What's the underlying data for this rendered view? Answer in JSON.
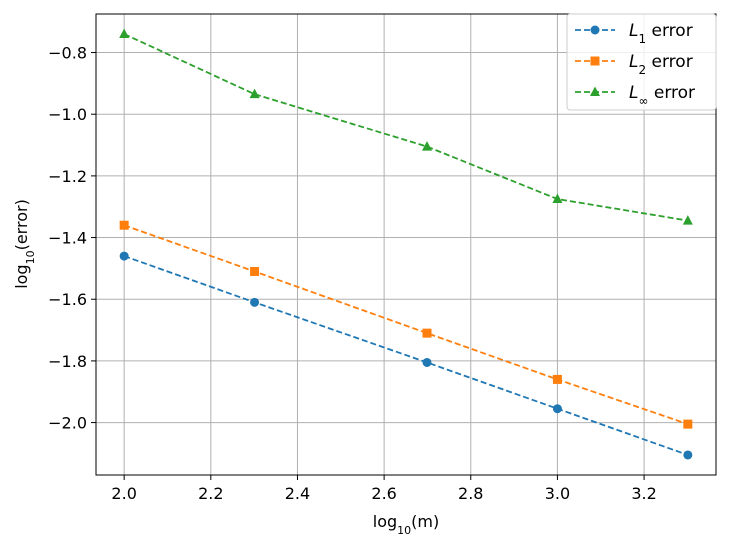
{
  "chart_data": {
    "type": "line",
    "xlabel": {
      "base": "log",
      "sub": "10",
      "rest": "(m)"
    },
    "ylabel": {
      "base": "log",
      "sub": "10",
      "rest": "(error)"
    },
    "x": [
      2.0,
      2.301,
      2.699,
      3.0,
      3.301
    ],
    "xlim": [
      1.935,
      3.366
    ],
    "ylim": [
      -2.17,
      -0.675
    ],
    "xticks": [
      2.0,
      2.2,
      2.4,
      2.6,
      2.8,
      3.0,
      3.2
    ],
    "xtick_labels": [
      "2.0",
      "2.2",
      "2.4",
      "2.6",
      "2.8",
      "3.0",
      "3.2"
    ],
    "yticks": [
      -2.0,
      -1.8,
      -1.6,
      -1.4,
      -1.2,
      -1.0,
      -0.8
    ],
    "ytick_labels": [
      "−2.0",
      "−1.8",
      "−1.6",
      "−1.4",
      "−1.2",
      "−1.0",
      "−0.8"
    ],
    "grid": true,
    "legend_position": "top-right",
    "series": [
      {
        "name": "L1 error",
        "label_base": "L",
        "label_sub": "1",
        "label_rest": " error",
        "color": "#1f77b4",
        "marker": "circle",
        "linestyle": "dashed",
        "values": [
          -1.46,
          -1.61,
          -1.805,
          -1.955,
          -2.105
        ]
      },
      {
        "name": "L2 error",
        "label_base": "L",
        "label_sub": "2",
        "label_rest": " error",
        "color": "#ff7f0e",
        "marker": "square",
        "linestyle": "dashed",
        "values": [
          -1.36,
          -1.51,
          -1.71,
          -1.86,
          -2.005
        ]
      },
      {
        "name": "L∞ error",
        "label_base": "L",
        "label_sub": "∞",
        "label_rest": " error",
        "color": "#2ca02c",
        "marker": "triangle",
        "linestyle": "dashed",
        "values": [
          -0.74,
          -0.935,
          -1.105,
          -1.275,
          -1.345
        ]
      }
    ]
  }
}
